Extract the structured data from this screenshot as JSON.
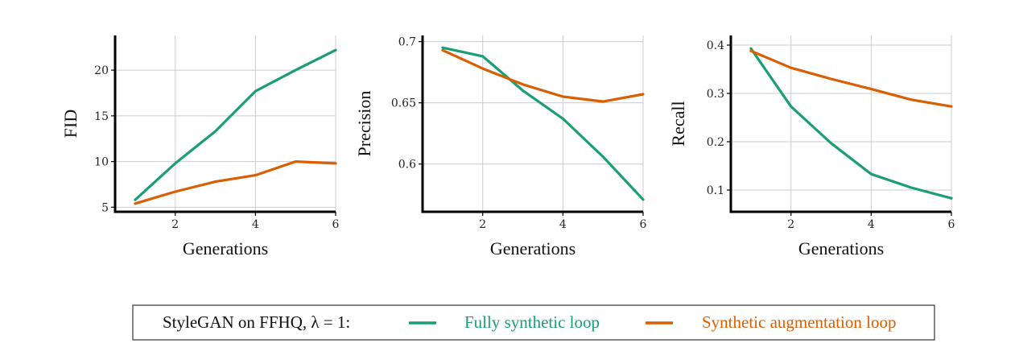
{
  "legend": {
    "prefix": "StyleGAN on FFHQ, λ = 1:",
    "entries": [
      {
        "label": "Fully synthetic loop",
        "color": "#1b9e77"
      },
      {
        "label": "Synthetic augmentation loop",
        "color": "#d95f02"
      }
    ]
  },
  "chart_data": [
    {
      "type": "line",
      "xlabel": "Generations",
      "ylabel": "FID",
      "xlim": [
        0.5,
        6
      ],
      "ylim": [
        4.5,
        23.8
      ],
      "xticks": [
        2,
        4,
        6
      ],
      "yticks": [
        5,
        10,
        15,
        20
      ],
      "ytick_labels": [
        "5",
        "10",
        "15",
        "20"
      ],
      "grid": true,
      "x": [
        1,
        2,
        3,
        4,
        5,
        6
      ],
      "series": [
        {
          "key": "fully_synthetic",
          "color": "#1b9e77",
          "values": [
            5.8,
            9.8,
            13.3,
            17.7,
            20.0,
            22.2
          ]
        },
        {
          "key": "synthetic_augmentation",
          "color": "#d95f02",
          "values": [
            5.4,
            6.7,
            7.8,
            8.5,
            10.0,
            9.8
          ]
        }
      ]
    },
    {
      "type": "line",
      "xlabel": "Generations",
      "ylabel": "Precision",
      "xlim": [
        0.5,
        6
      ],
      "ylim": [
        0.561,
        0.705
      ],
      "xticks": [
        2,
        4,
        6
      ],
      "yticks": [
        0.6,
        0.65,
        0.7
      ],
      "ytick_labels": [
        "0.6",
        "0.65",
        "0.7"
      ],
      "grid": true,
      "x": [
        1,
        2,
        3,
        4,
        5,
        6
      ],
      "series": [
        {
          "key": "fully_synthetic",
          "color": "#1b9e77",
          "values": [
            0.695,
            0.688,
            0.66,
            0.637,
            0.606,
            0.571
          ]
        },
        {
          "key": "synthetic_augmentation",
          "color": "#d95f02",
          "values": [
            0.693,
            0.678,
            0.665,
            0.655,
            0.651,
            0.657
          ]
        }
      ]
    },
    {
      "type": "line",
      "xlabel": "Generations",
      "ylabel": "Recall",
      "xlim": [
        0.5,
        6
      ],
      "ylim": [
        0.055,
        0.42
      ],
      "xticks": [
        2,
        4,
        6
      ],
      "yticks": [
        0.1,
        0.2,
        0.3,
        0.4
      ],
      "ytick_labels": [
        "0.1",
        "0.2",
        "0.3",
        "0.4"
      ],
      "grid": true,
      "x": [
        1,
        2,
        3,
        4,
        5,
        6
      ],
      "series": [
        {
          "key": "fully_synthetic",
          "color": "#1b9e77",
          "values": [
            0.393,
            0.273,
            0.197,
            0.133,
            0.105,
            0.083
          ]
        },
        {
          "key": "synthetic_augmentation",
          "color": "#d95f02",
          "values": [
            0.388,
            0.353,
            0.33,
            0.309,
            0.287,
            0.273
          ]
        }
      ]
    }
  ]
}
